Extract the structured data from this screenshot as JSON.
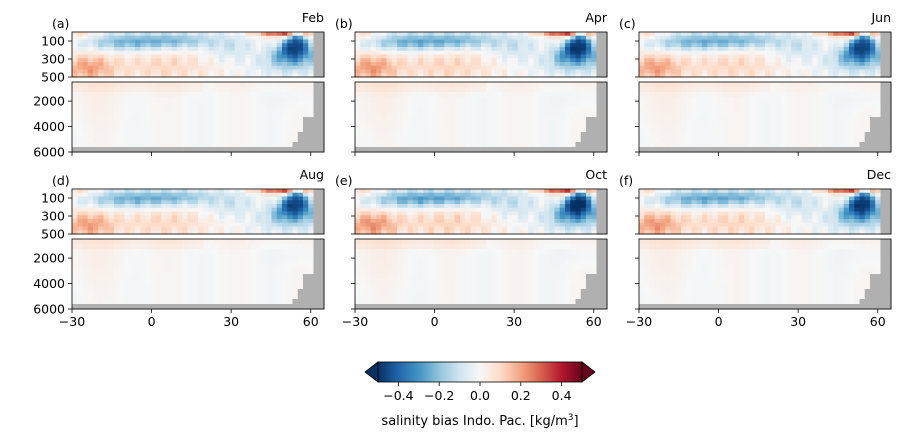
{
  "chart_data": {
    "type": "heatmap",
    "panels": [
      {
        "letter": "(a)",
        "month": "Feb",
        "strength": 1.0
      },
      {
        "letter": "(b)",
        "month": "Apr",
        "strength": 1.05
      },
      {
        "letter": "(c)",
        "month": "Jun",
        "strength": 1.0
      },
      {
        "letter": "(d)",
        "month": "Aug",
        "strength": 1.0
      },
      {
        "letter": "(e)",
        "month": "Oct",
        "strength": 1.1
      },
      {
        "letter": "(f)",
        "month": "Dec",
        "strength": 1.05
      }
    ],
    "x_ticks": [
      "−30",
      "0",
      "30",
      "60"
    ],
    "x_tick_values": [
      -30,
      0,
      30,
      60
    ],
    "xlim": [
      -30,
      65
    ],
    "upper_ylim": [
      500,
      0
    ],
    "upper_y_ticks": [
      "100",
      "300",
      "500"
    ],
    "upper_y_tick_values": [
      100,
      300,
      500
    ],
    "lower_ylim": [
      6000,
      500
    ],
    "lower_y_ticks": [
      "2000",
      "4000",
      "6000"
    ],
    "lower_y_tick_values": [
      2000,
      4000,
      6000
    ],
    "colorbar": {
      "label": "salinity bias Indo. Pac. [kg/m",
      "label_sup": "3",
      "label_close": "]",
      "min": -0.5,
      "max": 0.5,
      "ticks": [
        "−0.4",
        "−0.2",
        "0.0",
        "0.2",
        "0.4"
      ],
      "tick_values": [
        -0.4,
        -0.2,
        0.0,
        0.2,
        0.4
      ],
      "colormap": "RdBu_r",
      "extend": "both"
    },
    "land_color": "#b0b0b0"
  }
}
